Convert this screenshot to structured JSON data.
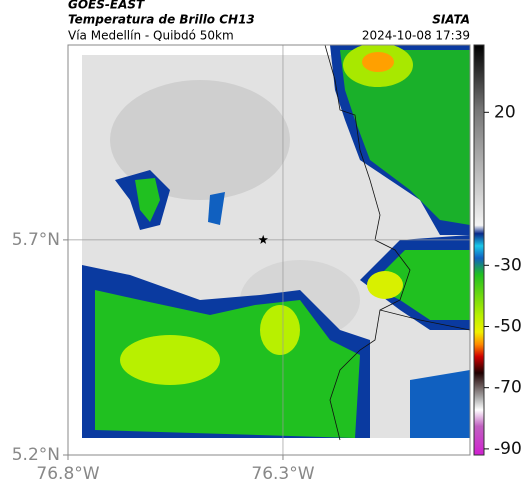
{
  "header": {
    "title": "GOES-EAST",
    "subtitle": "Temperatura de Brillo CH13",
    "route": "Vía Medellín - Quibdó 50km",
    "source": "SIATA",
    "datetime": "2024-10-08 17:39"
  },
  "map": {
    "xlim": [
      -76.8,
      -75.865
    ],
    "ylim": [
      5.2,
      6.153
    ],
    "xticks": [
      {
        "value": -76.8,
        "label": "76.8°W"
      },
      {
        "value": -76.3,
        "label": "76.3°W"
      }
    ],
    "yticks": [
      {
        "value": 5.2,
        "label": "5.2°N"
      },
      {
        "value": 5.7,
        "label": "5.7°N"
      }
    ],
    "grid": true,
    "marker": {
      "lon": -76.346,
      "lat": 5.7
    }
  },
  "colorbar": {
    "lim": [
      -92,
      42
    ],
    "ticks": [
      20,
      -30,
      -50,
      -70,
      -90
    ]
  }
}
